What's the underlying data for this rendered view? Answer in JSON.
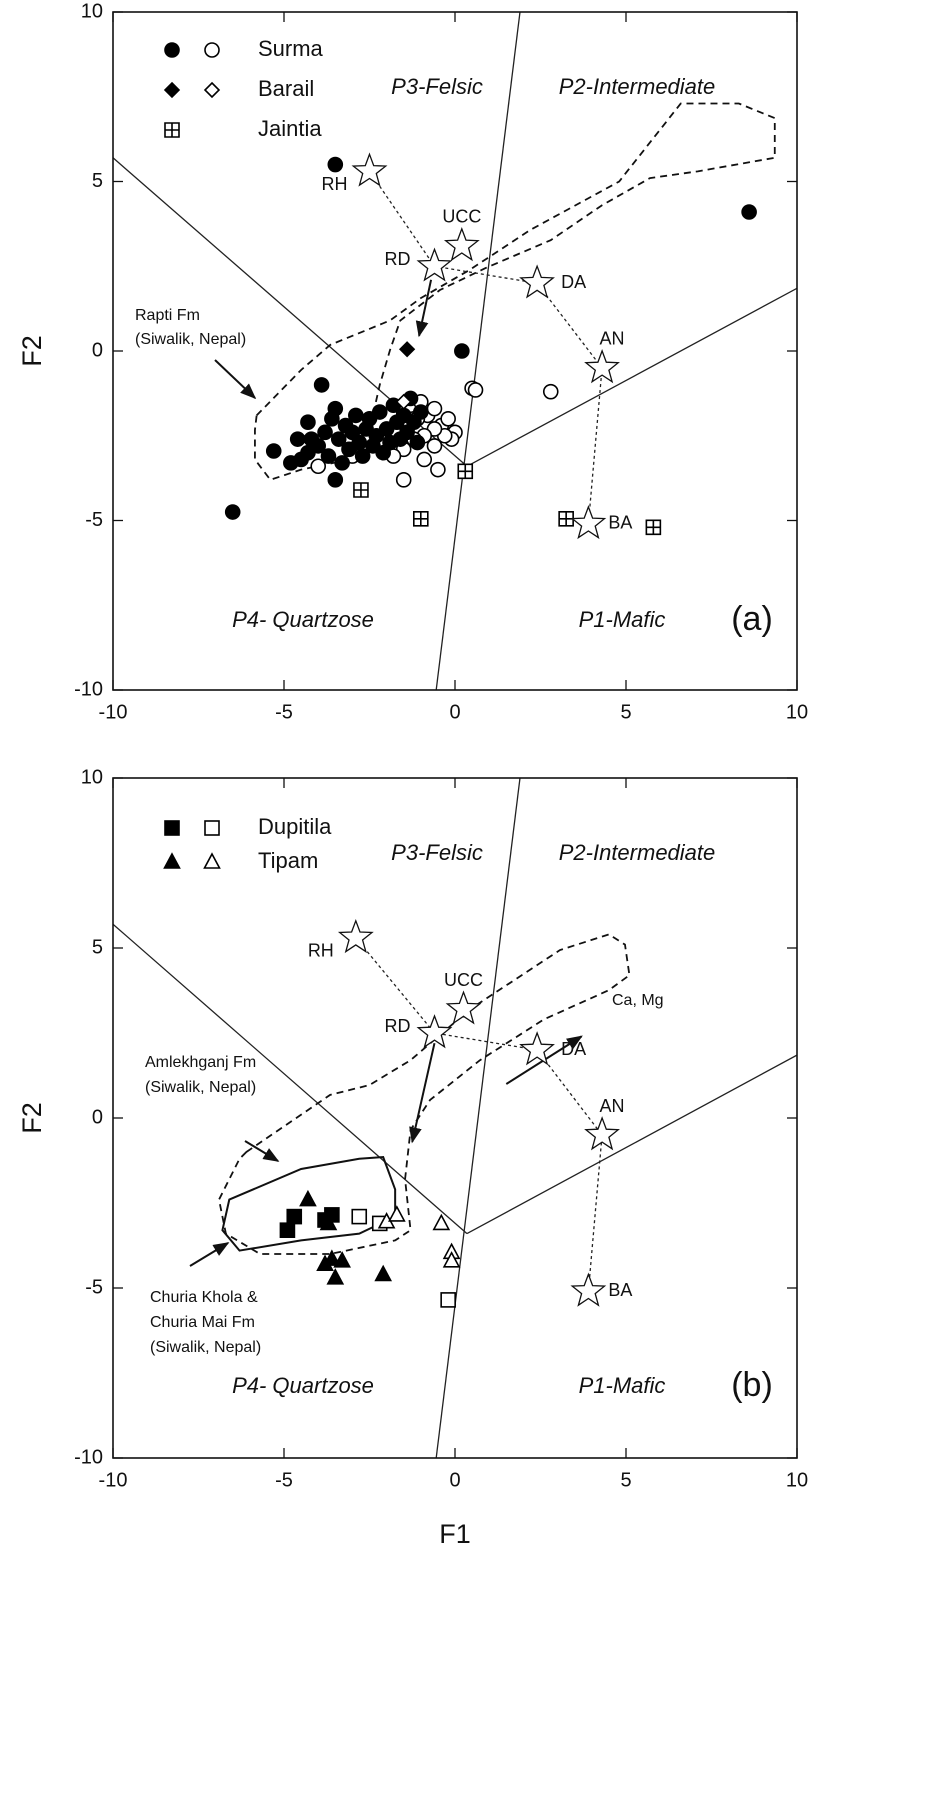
{
  "chart_data": [
    {
      "type": "scatter",
      "panel_label": "(a)",
      "ylabel": "F2",
      "xlim": [
        -10,
        10
      ],
      "ylim": [
        -10,
        10
      ],
      "xticks": [
        -10,
        -5,
        0,
        5,
        10
      ],
      "yticks": [
        -10,
        -5,
        0,
        5,
        10
      ],
      "region_labels": [
        "P3-Felsic",
        "P2-Intermediate",
        "P4- Quartzose",
        "P1-Mafic"
      ],
      "annotations": [
        {
          "lines": [
            "Rapti Fm",
            "(Siwalik, Nepal)"
          ]
        }
      ],
      "series": [
        {
          "name": "Surma",
          "marker": "circle",
          "color": "#000000",
          "filled": {
            "x": [
              -4.8,
              -4.5,
              -4.3,
              -4.2,
              -4.3,
              -4.0,
              -3.8,
              -3.7,
              -3.6,
              -3.5,
              -3.4,
              -3.3,
              -3.2,
              -3.1,
              -3.0,
              -2.9,
              -2.8,
              -2.7,
              -2.6,
              -2.5,
              -2.4,
              -2.3,
              -2.2,
              -2.1,
              -2.0,
              -1.9,
              -1.8,
              -1.7,
              -1.6,
              -1.5,
              -1.4,
              -1.3,
              -1.2,
              -1.1,
              -1.0,
              -3.5,
              -4.6,
              -3.9,
              -3.5,
              8.6,
              0.2,
              -5.3,
              -6.5
            ],
            "y": [
              -3.3,
              -3.2,
              -3.0,
              -2.6,
              -2.1,
              -2.8,
              -2.4,
              -3.1,
              -2.0,
              -1.7,
              -2.6,
              -3.3,
              -2.2,
              -2.9,
              -2.4,
              -1.9,
              -2.7,
              -3.1,
              -2.3,
              -2.0,
              -2.8,
              -2.5,
              -1.8,
              -3.0,
              -2.3,
              -2.7,
              -1.6,
              -2.1,
              -2.6,
              -1.9,
              -2.4,
              -1.4,
              -2.1,
              -2.7,
              -1.8,
              -3.8,
              -2.6,
              -1.0,
              5.5,
              4.1,
              0.0,
              -2.95,
              -4.75
            ]
          },
          "open": {
            "x": [
              0.5,
              0.6,
              2.8,
              -1.5,
              -1.3,
              -1.0,
              -0.8,
              -0.6,
              -0.4,
              -0.2,
              0.0,
              -0.1,
              -0.3,
              -0.6,
              -0.9,
              -1.2,
              -1.5,
              -1.8,
              -0.9,
              -0.5,
              -1.5,
              -3.0,
              -4.0,
              -0.6,
              -1.1,
              -1.4
            ],
            "y": [
              -1.1,
              -1.15,
              -1.2,
              -1.8,
              -1.6,
              -1.5,
              -1.9,
              -1.7,
              -2.2,
              -2.0,
              -2.4,
              -2.6,
              -2.5,
              -2.3,
              -2.5,
              -2.6,
              -2.9,
              -3.1,
              -3.2,
              -3.5,
              -3.8,
              -3.1,
              -3.4,
              -2.8,
              -2.0,
              -2.3
            ]
          }
        },
        {
          "name": "Barail",
          "marker": "diamond",
          "color": "#000000",
          "filled": {
            "x": [
              -1.4
            ],
            "y": [
              0.05
            ]
          },
          "open": {
            "x": [
              -1.5
            ],
            "y": [
              -1.5
            ]
          }
        },
        {
          "name": "Jaintia",
          "marker": "boxplus",
          "color": "#000000",
          "open": {
            "x": [
              -2.75,
              -1.0,
              0.3,
              3.25,
              5.8
            ],
            "y": [
              -4.1,
              -4.95,
              -3.55,
              -4.95,
              -5.2
            ]
          }
        }
      ],
      "reference_points": {
        "labels": [
          "RH",
          "UCC",
          "RD",
          "DA",
          "AN",
          "BA"
        ],
        "x": [
          -2.5,
          0.2,
          -0.6,
          2.4,
          4.3,
          3.9
        ],
        "y": [
          5.3,
          3.1,
          2.5,
          2.0,
          -0.5,
          -5.1
        ]
      }
    },
    {
      "type": "scatter",
      "panel_label": "(b)",
      "ylabel": "F2",
      "xlabel": "F1",
      "xlim": [
        -10,
        10
      ],
      "ylim": [
        -10,
        10
      ],
      "xticks": [
        -10,
        -5,
        0,
        5,
        10
      ],
      "yticks": [
        -10,
        -5,
        0,
        5,
        10
      ],
      "region_labels": [
        "P3-Felsic",
        "P2-Intermediate",
        "P4- Quartzose",
        "P1-Mafic"
      ],
      "annotations": [
        {
          "lines": [
            "Amlekhganj Fm",
            "(Siwalik, Nepal)"
          ]
        },
        {
          "lines": [
            "Churia Khola &",
            "Churia Mai Fm",
            "(Siwalik, Nepal)"
          ]
        },
        {
          "lines": [
            "Ca, Mg"
          ]
        }
      ],
      "series": [
        {
          "name": "Dupitila",
          "marker": "square",
          "color": "#000000",
          "filled": {
            "x": [
              -4.7,
              -4.9,
              -3.6,
              -3.8
            ],
            "y": [
              -2.9,
              -3.3,
              -2.85,
              -3.0
            ]
          },
          "open": {
            "x": [
              -2.8,
              -2.2,
              -0.2
            ],
            "y": [
              -2.9,
              -3.1,
              -5.35
            ]
          }
        },
        {
          "name": "Tipam",
          "marker": "triangle",
          "color": "#000000",
          "filled": {
            "x": [
              -4.3,
              -3.7,
              -3.8,
              -3.5,
              -3.3,
              -3.6,
              -2.1
            ],
            "y": [
              -2.4,
              -3.1,
              -4.3,
              -4.7,
              -4.2,
              -4.15,
              -4.6
            ]
          },
          "open": {
            "x": [
              -2.0,
              -1.7,
              -0.4,
              -0.1,
              -0.1
            ],
            "y": [
              -3.05,
              -2.85,
              -3.1,
              -3.95,
              -4.2
            ]
          }
        }
      ],
      "reference_points": {
        "labels": [
          "RH",
          "UCC",
          "RD",
          "DA",
          "AN",
          "BA"
        ],
        "x": [
          -2.9,
          0.25,
          -0.6,
          2.4,
          4.3,
          3.9
        ],
        "y": [
          5.3,
          3.2,
          2.5,
          2.0,
          -0.5,
          -5.1
        ]
      }
    }
  ]
}
